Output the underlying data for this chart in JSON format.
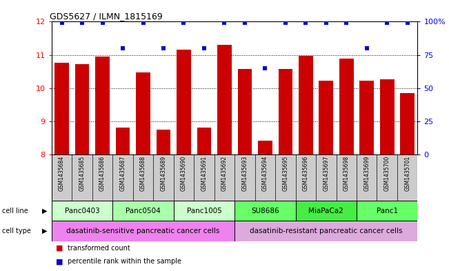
{
  "title": "GDS5627 / ILMN_1815169",
  "samples": [
    "GSM1435684",
    "GSM1435685",
    "GSM1435686",
    "GSM1435687",
    "GSM1435688",
    "GSM1435689",
    "GSM1435690",
    "GSM1435691",
    "GSM1435692",
    "GSM1435693",
    "GSM1435694",
    "GSM1435695",
    "GSM1435696",
    "GSM1435697",
    "GSM1435698",
    "GSM1435699",
    "GSM1435700",
    "GSM1435701"
  ],
  "transformed_count": [
    10.77,
    10.73,
    10.95,
    8.82,
    10.48,
    8.75,
    11.15,
    8.82,
    11.3,
    10.58,
    8.42,
    10.58,
    10.97,
    10.23,
    10.88,
    10.23,
    10.27,
    9.85
  ],
  "percentile_rank": [
    99,
    99,
    99,
    80,
    99,
    80,
    99,
    80,
    99,
    99,
    65,
    99,
    99,
    99,
    99,
    80,
    99,
    99
  ],
  "bar_color": "#cc0000",
  "dot_color": "#0000cc",
  "ylim_left": [
    8,
    12
  ],
  "ylim_right": [
    0,
    100
  ],
  "yticks_left": [
    8,
    9,
    10,
    11,
    12
  ],
  "yticks_right": [
    0,
    25,
    50,
    75,
    100
  ],
  "cell_lines": [
    {
      "label": "Panc0403",
      "start": 0,
      "end": 3,
      "color": "#ccffcc"
    },
    {
      "label": "Panc0504",
      "start": 3,
      "end": 6,
      "color": "#aaffaa"
    },
    {
      "label": "Panc1005",
      "start": 6,
      "end": 9,
      "color": "#ccffcc"
    },
    {
      "label": "SU8686",
      "start": 9,
      "end": 12,
      "color": "#66ff66"
    },
    {
      "label": "MiaPaCa2",
      "start": 12,
      "end": 15,
      "color": "#44ee44"
    },
    {
      "label": "Panc1",
      "start": 15,
      "end": 18,
      "color": "#66ff66"
    }
  ],
  "cell_types": [
    {
      "label": "dasatinib-sensitive pancreatic cancer cells",
      "start": 0,
      "end": 9,
      "color": "#ee82ee"
    },
    {
      "label": "dasatinib-resistant pancreatic cancer cells",
      "start": 9,
      "end": 18,
      "color": "#ddaadd"
    }
  ],
  "legend_items": [
    {
      "label": "transformed count",
      "color": "#cc0000"
    },
    {
      "label": "percentile rank within the sample",
      "color": "#0000cc"
    }
  ],
  "sample_label_bg": "#cccccc",
  "grid_yticks": [
    9,
    10,
    11
  ]
}
